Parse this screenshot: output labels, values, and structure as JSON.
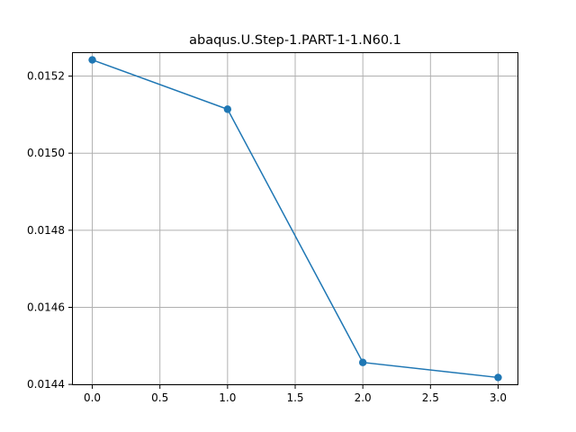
{
  "chart_data": {
    "type": "line",
    "title": "abaqus.U.Step-1.PART-1-1.N60.1",
    "xlabel": "",
    "ylabel": "",
    "x": [
      0,
      1,
      2,
      3
    ],
    "series": [
      {
        "values": [
          0.015242,
          0.015114,
          0.014457,
          0.014418
        ],
        "color": "#1f77b4",
        "marker": "circle"
      }
    ],
    "xlim": [
      -0.15,
      3.15
    ],
    "ylim": [
      0.014398,
      0.015262
    ],
    "xticks": [
      0.0,
      0.5,
      1.0,
      1.5,
      2.0,
      2.5,
      3.0
    ],
    "xtick_labels": [
      "0.0",
      "0.5",
      "1.0",
      "1.5",
      "2.0",
      "2.5",
      "3.0"
    ],
    "yticks": [
      0.0144,
      0.0146,
      0.0148,
      0.015,
      0.0152
    ],
    "ytick_labels": [
      "0.0144",
      "0.0146",
      "0.0148",
      "0.0150",
      "0.0152"
    ],
    "grid": true,
    "legend": false
  }
}
